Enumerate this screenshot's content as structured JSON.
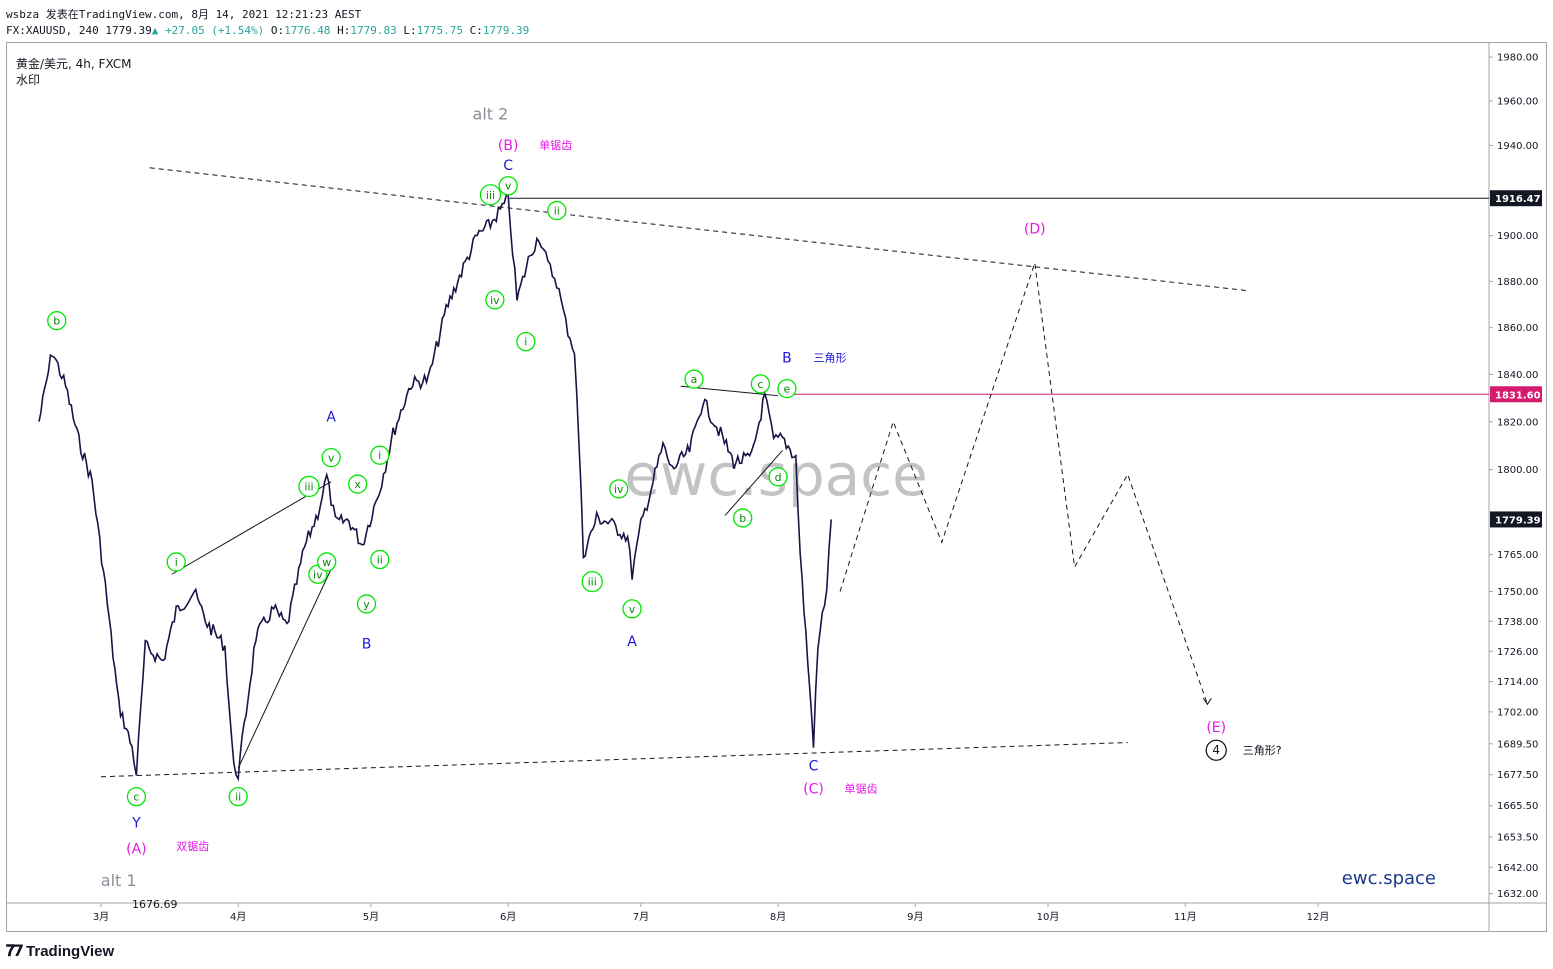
{
  "header": {
    "line1": "wsbza 发表在TradingView.com, 8月 14, 2021 12:21:23 AEST",
    "symbol": "FX:XAUUSD, 240",
    "last": "1779.39",
    "change": "+27.05 (+1.54%)",
    "open_label": "O:",
    "open": "1776.48",
    "high_label": "H:",
    "high": "1779.83",
    "low_label": "L:",
    "low": "1775.75",
    "close_label": "C:",
    "close": "1779.39"
  },
  "chart_title": "黄金/美元, 4h, FXCM",
  "watermark_label": "水印",
  "footer": {
    "brand": "TradingView"
  },
  "colors": {
    "candles": "#1a1446",
    "wave_green": "#00e600",
    "wave_blue": "#1e19d6",
    "wave_magenta": "#e619e6",
    "alt_gray": "#8a8f99",
    "hline_magenta": "#d61a6e",
    "label_dark": "#131722",
    "watermark": "#b0b0b0",
    "brand_blue": "#1b3a8c"
  },
  "chart_data": {
    "type": "line",
    "title": "黄金/美元, 4h, FXCM",
    "xlabel": "",
    "ylabel": "",
    "y_scale": "log",
    "ylim": [
      1632,
      1990
    ],
    "xlim": [
      "2021-02-15",
      "2021-12-31"
    ],
    "x_ticks": [
      "3月",
      "4月",
      "5月",
      "6月",
      "7月",
      "8月",
      "9月",
      "10月",
      "11月",
      "12月"
    ],
    "x_tick_dates": [
      "2021-03-01",
      "2021-04-01",
      "2021-05-01",
      "2021-06-01",
      "2021-07-01",
      "2021-08-01",
      "2021-09-01",
      "2021-10-01",
      "2021-11-01",
      "2021-12-01"
    ],
    "y_ticks": [
      1632.0,
      1642.0,
      1653.5,
      1665.5,
      1677.5,
      1689.5,
      1702.0,
      1714.0,
      1726.0,
      1738.0,
      1750.0,
      1765.0,
      1800.0,
      1820.0,
      1840.0,
      1860.0,
      1880.0,
      1900.0,
      1940.0,
      1960.0,
      1980.0
    ],
    "y_tick_labels": [
      "1632.00",
      "1642.00",
      "1653.50",
      "1665.50",
      "1677.50",
      "1689.50",
      "1702.00",
      "1714.00",
      "1726.00",
      "1738.00",
      "1750.00",
      "1765.00",
      "1800.00",
      "1820.00",
      "1840.00",
      "1860.00",
      "1880.00",
      "1900.00",
      "1940.00",
      "1960.00",
      "1980.00"
    ],
    "price_tags": [
      {
        "label": "1916.47",
        "value": 1916.47,
        "style": "black"
      },
      {
        "label": "1831.60",
        "value": 1831.6,
        "style": "magenta"
      },
      {
        "label": "1779.39",
        "value": 1779.39,
        "style": "current"
      }
    ],
    "price_path": [
      [
        "2021-02-15",
        1820
      ],
      [
        "2021-02-18",
        1850
      ],
      [
        "2021-02-21",
        1835
      ],
      [
        "2021-02-24",
        1812
      ],
      [
        "2021-02-27",
        1795
      ],
      [
        "2021-03-02",
        1752
      ],
      [
        "2021-03-05",
        1705
      ],
      [
        "2021-03-08",
        1688
      ],
      [
        "2021-03-09",
        1678
      ],
      [
        "2021-03-11",
        1728
      ],
      [
        "2021-03-15",
        1722
      ],
      [
        "2021-03-18",
        1742
      ],
      [
        "2021-03-22",
        1750
      ],
      [
        "2021-03-25",
        1737
      ],
      [
        "2021-03-29",
        1728
      ],
      [
        "2021-03-31",
        1680
      ],
      [
        "2021-04-01",
        1678
      ],
      [
        "2021-04-05",
        1732
      ],
      [
        "2021-04-09",
        1743
      ],
      [
        "2021-04-12",
        1736
      ],
      [
        "2021-04-16",
        1768
      ],
      [
        "2021-04-19",
        1782
      ],
      [
        "2021-04-21",
        1797
      ],
      [
        "2021-04-23",
        1778
      ],
      [
        "2021-04-26",
        1779
      ],
      [
        "2021-04-29",
        1769
      ],
      [
        "2021-05-03",
        1792
      ],
      [
        "2021-05-06",
        1815
      ],
      [
        "2021-05-10",
        1836
      ],
      [
        "2021-05-14",
        1838
      ],
      [
        "2021-05-18",
        1868
      ],
      [
        "2021-05-21",
        1882
      ],
      [
        "2021-05-25",
        1900
      ],
      [
        "2021-05-28",
        1905
      ],
      [
        "2021-06-01",
        1916
      ],
      [
        "2021-06-03",
        1872
      ],
      [
        "2021-06-06",
        1892
      ],
      [
        "2021-06-08",
        1900
      ],
      [
        "2021-06-10",
        1887
      ],
      [
        "2021-06-12",
        1880
      ],
      [
        "2021-06-14",
        1862
      ],
      [
        "2021-06-16",
        1850
      ],
      [
        "2021-06-17",
        1812
      ],
      [
        "2021-06-18",
        1765
      ],
      [
        "2021-06-21",
        1780
      ],
      [
        "2021-06-24",
        1778
      ],
      [
        "2021-06-28",
        1772
      ],
      [
        "2021-06-29",
        1757
      ],
      [
        "2021-07-01",
        1777
      ],
      [
        "2021-07-06",
        1810
      ],
      [
        "2021-07-08",
        1800
      ],
      [
        "2021-07-12",
        1808
      ],
      [
        "2021-07-15",
        1829
      ],
      [
        "2021-07-19",
        1815
      ],
      [
        "2021-07-22",
        1803
      ],
      [
        "2021-07-26",
        1805
      ],
      [
        "2021-07-29",
        1831
      ],
      [
        "2021-07-31",
        1812
      ],
      [
        "2021-08-02",
        1813
      ],
      [
        "2021-08-05",
        1805
      ],
      [
        "2021-08-06",
        1765
      ],
      [
        "2021-08-09",
        1690
      ],
      [
        "2021-08-10",
        1727
      ],
      [
        "2021-08-11",
        1740
      ],
      [
        "2021-08-12",
        1752
      ],
      [
        "2021-08-13",
        1779.39
      ]
    ],
    "projection": [
      [
        "2021-08-15",
        1750
      ],
      [
        "2021-08-27",
        1820
      ],
      [
        "2021-09-07",
        1770
      ],
      [
        "2021-09-28",
        1888
      ],
      [
        "2021-10-07",
        1760
      ],
      [
        "2021-10-19",
        1798
      ],
      [
        "2021-11-06",
        1705
      ]
    ],
    "trendlines": [
      {
        "name": "upper-dashed",
        "style": "dashed",
        "points": [
          [
            "2021-03-12",
            1930
          ],
          [
            "2021-11-15",
            1876
          ]
        ]
      },
      {
        "name": "lower-dashed",
        "style": "dashed",
        "points": [
          [
            "2021-03-01",
            1676.69
          ],
          [
            "2021-10-19",
            1690
          ]
        ]
      },
      {
        "name": "b-triangle-top",
        "style": "solid",
        "points": [
          [
            "2021-07-10",
            1835
          ],
          [
            "2021-08-01",
            1831
          ]
        ]
      },
      {
        "name": "wedge-upper",
        "style": "solid",
        "points": [
          [
            "2021-03-17",
            1757
          ],
          [
            "2021-04-22",
            1795
          ]
        ]
      },
      {
        "name": "wedge-lower",
        "style": "solid",
        "points": [
          [
            "2021-04-01",
            1680
          ],
          [
            "2021-04-23",
            1763
          ]
        ]
      },
      {
        "name": "e-b-line",
        "style": "solid",
        "points": [
          [
            "2021-07-20",
            1781
          ],
          [
            "2021-08-02",
            1808
          ]
        ]
      }
    ],
    "horizontal_lines": [
      {
        "value": 1916.47,
        "color": "#131722",
        "from": "2021-06-01"
      },
      {
        "value": 1831.6,
        "color": "#d61a6e",
        "from": "2021-08-02"
      }
    ],
    "annotations": [
      {
        "text": "b",
        "style": "green-circle",
        "at": [
          "2021-02-19",
          1863
        ]
      },
      {
        "text": "c",
        "style": "green-circle",
        "at": [
          "2021-03-09",
          1669
        ]
      },
      {
        "text": "Y",
        "style": "blue",
        "at": [
          "2021-03-09",
          1659
        ]
      },
      {
        "text": "(A)",
        "style": "magenta",
        "at": [
          "2021-03-09",
          1649
        ]
      },
      {
        "text": "双锯齿",
        "style": "magenta-small",
        "at": [
          "2021-03-18",
          1650
        ]
      },
      {
        "text": "alt 1",
        "style": "gray",
        "at": [
          "2021-03-05",
          1637
        ]
      },
      {
        "text": "1676.69",
        "style": "dark-small",
        "at": [
          "2021-03-08",
          1628
        ]
      },
      {
        "text": "i",
        "style": "green-circle",
        "at": [
          "2021-03-18",
          1762
        ]
      },
      {
        "text": "ii",
        "style": "green-circle",
        "at": [
          "2021-04-01",
          1669
        ]
      },
      {
        "text": "A",
        "style": "blue",
        "at": [
          "2021-04-22",
          1822
        ]
      },
      {
        "text": "v",
        "style": "green-circle",
        "at": [
          "2021-04-22",
          1805
        ]
      },
      {
        "text": "iii",
        "style": "green-circle",
        "at": [
          "2021-04-17",
          1793
        ]
      },
      {
        "text": "x",
        "style": "green-circle",
        "at": [
          "2021-04-28",
          1794
        ]
      },
      {
        "text": "i",
        "style": "green-circle",
        "at": [
          "2021-05-03",
          1806
        ]
      },
      {
        "text": "iv",
        "style": "green-circle",
        "at": [
          "2021-04-19",
          1757
        ]
      },
      {
        "text": "w",
        "style": "green-circle",
        "at": [
          "2021-04-21",
          1762
        ]
      },
      {
        "text": "ii",
        "style": "green-circle",
        "at": [
          "2021-05-03",
          1763
        ]
      },
      {
        "text": "y",
        "style": "green-circle",
        "at": [
          "2021-04-30",
          1745
        ]
      },
      {
        "text": "B",
        "style": "blue",
        "at": [
          "2021-04-30",
          1729
        ]
      },
      {
        "text": "alt 2",
        "style": "gray",
        "at": [
          "2021-05-28",
          1954
        ]
      },
      {
        "text": "(B)",
        "style": "magenta",
        "at": [
          "2021-06-01",
          1940
        ]
      },
      {
        "text": "单锯齿",
        "style": "magenta-small",
        "at": [
          "2021-06-08",
          1940
        ]
      },
      {
        "text": "C",
        "style": "blue",
        "at": [
          "2021-06-01",
          1931
        ]
      },
      {
        "text": "iii",
        "style": "green-circle",
        "at": [
          "2021-05-28",
          1918
        ]
      },
      {
        "text": "v",
        "style": "green-circle",
        "at": [
          "2021-06-01",
          1922
        ]
      },
      {
        "text": "ii",
        "style": "green-circle",
        "at": [
          "2021-06-12",
          1911
        ]
      },
      {
        "text": "iv",
        "style": "green-circle",
        "at": [
          "2021-05-29",
          1872
        ]
      },
      {
        "text": "i",
        "style": "green-circle",
        "at": [
          "2021-06-05",
          1854
        ]
      },
      {
        "text": "iv",
        "style": "green-circle",
        "at": [
          "2021-06-26",
          1792
        ]
      },
      {
        "text": "iii",
        "style": "green-circle",
        "at": [
          "2021-06-20",
          1754
        ]
      },
      {
        "text": "v",
        "style": "green-circle",
        "at": [
          "2021-06-29",
          1743
        ]
      },
      {
        "text": "A",
        "style": "blue",
        "at": [
          "2021-06-29",
          1730
        ]
      },
      {
        "text": "a",
        "style": "green-circle",
        "at": [
          "2021-07-13",
          1838
        ]
      },
      {
        "text": "c",
        "style": "green-circle",
        "at": [
          "2021-07-28",
          1836
        ]
      },
      {
        "text": "e",
        "style": "green-circle",
        "at": [
          "2021-08-03",
          1834
        ]
      },
      {
        "text": "B",
        "style": "blue",
        "at": [
          "2021-08-03",
          1847
        ]
      },
      {
        "text": "三角形",
        "style": "blue-small",
        "at": [
          "2021-08-09",
          1847
        ]
      },
      {
        "text": "d",
        "style": "green-circle",
        "at": [
          "2021-08-01",
          1797
        ]
      },
      {
        "text": "b",
        "style": "green-circle",
        "at": [
          "2021-07-24",
          1780
        ]
      },
      {
        "text": "C",
        "style": "blue",
        "at": [
          "2021-08-09",
          1681
        ]
      },
      {
        "text": "(C)",
        "style": "magenta",
        "at": [
          "2021-08-09",
          1672
        ]
      },
      {
        "text": "单锯齿",
        "style": "magenta-small",
        "at": [
          "2021-08-16",
          1672
        ]
      },
      {
        "text": "(D)",
        "style": "magenta",
        "at": [
          "2021-09-28",
          1903
        ]
      },
      {
        "text": "(E)",
        "style": "magenta",
        "at": [
          "2021-11-08",
          1696
        ]
      },
      {
        "text": "4",
        "style": "black-circle",
        "at": [
          "2021-11-08",
          1687
        ]
      },
      {
        "text": "三角形?",
        "style": "dark-small",
        "at": [
          "2021-11-14",
          1687
        ]
      }
    ],
    "grid": false,
    "legend": "none",
    "center_watermark": "ewc.space",
    "brand_label": "ewc.space"
  }
}
